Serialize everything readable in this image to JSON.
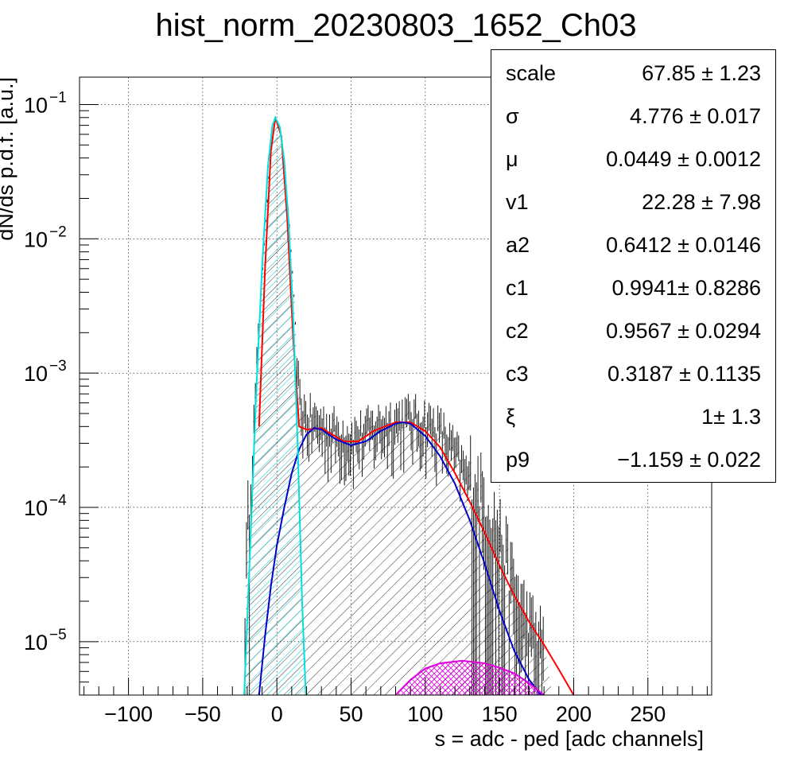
{
  "chart_data": {
    "type": "histogram",
    "title": "hist_norm_20230803_1652_Ch03",
    "xlabel": "s = adc - ped [adc channels]",
    "ylabel": "dN/ds p.d.f. [a.u.]",
    "xlim": [
      -133,
      293
    ],
    "ylim": [
      4e-06,
      0.16
    ],
    "yscale": "log",
    "grid": true,
    "xticks": [
      -100,
      -50,
      0,
      50,
      100,
      150,
      200,
      250
    ],
    "xtick_labels": [
      "−100",
      "−50",
      "0",
      "50",
      "100",
      "150",
      "200",
      "250"
    ],
    "yticks": [
      {
        "value": 1e-05,
        "base": "10",
        "exp": "−5"
      },
      {
        "value": 0.0001,
        "base": "10",
        "exp": "−4"
      },
      {
        "value": 0.001,
        "base": "10",
        "exp": "−3"
      },
      {
        "value": 0.01,
        "base": "10",
        "exp": "−2"
      },
      {
        "value": 0.1,
        "base": "10",
        "exp": "−1"
      }
    ],
    "histogram": {
      "binning": "1 adc channel",
      "shape": [
        [
          -22,
          1e-05
        ],
        [
          -20,
          5e-05
        ],
        [
          -15,
          0.0005
        ],
        [
          -10,
          0.005
        ],
        [
          -5,
          0.035
        ],
        [
          -1,
          0.08
        ],
        [
          3,
          0.06
        ],
        [
          8,
          0.015
        ],
        [
          12,
          0.003
        ],
        [
          15,
          0.0006
        ],
        [
          20,
          0.00045
        ],
        [
          30,
          0.0004
        ],
        [
          40,
          0.00035
        ],
        [
          50,
          0.00032
        ],
        [
          60,
          0.00035
        ],
        [
          70,
          0.0004
        ],
        [
          85,
          0.00045
        ],
        [
          100,
          0.00042
        ],
        [
          110,
          0.00036
        ],
        [
          120,
          0.00025
        ],
        [
          130,
          0.00015
        ],
        [
          140,
          9e-05
        ],
        [
          150,
          5e-05
        ],
        [
          160,
          2e-05
        ],
        [
          170,
          1e-05
        ],
        [
          180,
          7e-06
        ]
      ]
    },
    "series": [
      {
        "component": "total fit",
        "color": "#ff0000",
        "x": [
          -12,
          -8,
          -4,
          -1,
          3,
          7,
          11,
          15,
          20,
          30,
          45,
          55,
          65,
          80,
          90,
          100,
          110,
          120,
          130,
          140,
          150,
          160,
          170,
          180,
          190,
          200
        ],
        "y": [
          0.0004,
          0.006,
          0.045,
          0.08,
          0.058,
          0.014,
          0.0018,
          0.0004,
          0.00038,
          0.00039,
          0.00031,
          0.00031,
          0.00037,
          0.00043,
          0.00043,
          0.00037,
          0.00028,
          0.00018,
          0.00011,
          6.5e-05,
          3.7e-05,
          2.2e-05,
          1.4e-05,
          9.5e-06,
          6.2e-06,
          4e-06
        ]
      },
      {
        "component": "pedestal",
        "color": "#00e0e0",
        "x": [
          -22,
          -18,
          -14,
          -10,
          -6,
          -3,
          -1,
          2,
          5,
          8,
          11,
          14,
          17,
          19.5
        ],
        "y": [
          4e-06,
          5e-05,
          0.0007,
          0.006,
          0.035,
          0.07,
          0.08,
          0.068,
          0.038,
          0.013,
          0.0026,
          0.0003,
          2e-05,
          4e-06
        ]
      },
      {
        "component": "signal",
        "color": "#0000cc",
        "x": [
          -12,
          -8,
          -4,
          0,
          5,
          10,
          15,
          20,
          25,
          30,
          40,
          50,
          60,
          70,
          80,
          85,
          90,
          100,
          110,
          120,
          130,
          140,
          150,
          160,
          170,
          178
        ],
        "y": [
          4e-06,
          1.1e-05,
          2.6e-05,
          5.2e-05,
          0.0001,
          0.00018,
          0.00027,
          0.00035,
          0.00039,
          0.00038,
          0.00032,
          0.00029,
          0.00031,
          0.00037,
          0.00042,
          0.00043,
          0.00042,
          0.00034,
          0.00024,
          0.00015,
          8e-05,
          3.8e-05,
          1.7e-05,
          8.5e-06,
          5.2e-06,
          4e-06
        ]
      },
      {
        "component": "second component",
        "color": "#e000e0",
        "x": [
          80,
          90,
          100,
          110,
          120,
          125,
          130,
          140,
          150,
          160,
          170,
          180
        ],
        "y": [
          4e-06,
          5.2e-06,
          6.3e-06,
          6.9e-06,
          7.1e-06,
          7.2e-06,
          7.1e-06,
          6.9e-06,
          6.4e-06,
          5.8e-06,
          4.9e-06,
          4e-06
        ]
      }
    ]
  },
  "stats_box": {
    "rows": [
      {
        "name": "scale",
        "value": "67.85 ± 1.23"
      },
      {
        "name": "σ",
        "value": "4.776 ± 0.017"
      },
      {
        "name": "μ",
        "value": "0.0449 ± 0.0012"
      },
      {
        "name": "v1",
        "value": "22.28 ± 7.98"
      },
      {
        "name": "a2",
        "value": "0.6412 ± 0.0146"
      },
      {
        "name": "c1",
        "value": "0.9941± 0.8286"
      },
      {
        "name": "c2",
        "value": "0.9567 ± 0.0294"
      },
      {
        "name": "c3",
        "value": "0.3187 ± 0.1135"
      },
      {
        "name": "ξ",
        "value": "1± 1.3"
      },
      {
        "name": "p9",
        "value": "−1.159 ± 0.022"
      }
    ]
  }
}
